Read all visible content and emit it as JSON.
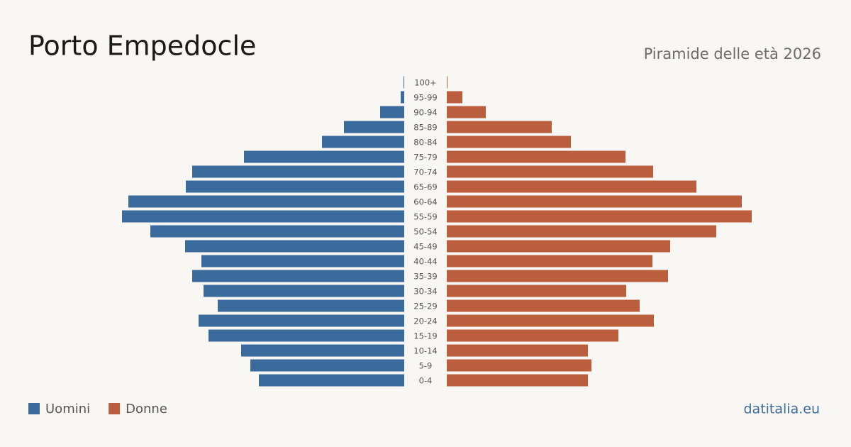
{
  "chart_data": {
    "type": "population-pyramid",
    "title": "Porto Empedocle",
    "subtitle": "Piramide delle età 2026",
    "source": "datitalia.eu",
    "categories": [
      "100+",
      "95-99",
      "90-94",
      "85-89",
      "80-84",
      "75-79",
      "70-74",
      "65-69",
      "60-64",
      "55-59",
      "50-54",
      "45-49",
      "40-44",
      "35-39",
      "30-34",
      "25-29",
      "20-24",
      "15-19",
      "10-14",
      "5-9",
      "0-4"
    ],
    "series": [
      {
        "name": "Uomini",
        "color": "#3b6a9c",
        "values": [
          1,
          5,
          34,
          85,
          116,
          226,
          299,
          308,
          389,
          398,
          358,
          309,
          286,
          299,
          283,
          263,
          290,
          276,
          230,
          217,
          205
        ]
      },
      {
        "name": "Donne",
        "color": "#bb5e3d",
        "values": [
          1,
          22,
          55,
          148,
          175,
          252,
          291,
          352,
          416,
          430,
          380,
          315,
          290,
          312,
          253,
          272,
          292,
          242,
          199,
          204,
          199
        ]
      }
    ]
  }
}
